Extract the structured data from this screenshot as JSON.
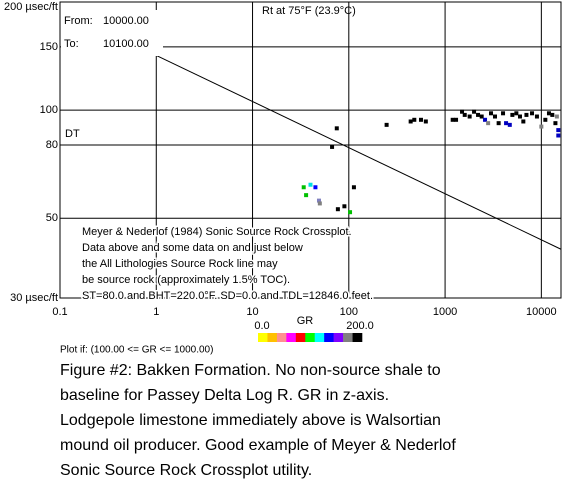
{
  "chart_data": {
    "type": "scatter",
    "title": "Rt at 75°F (23.9°C)",
    "y_label": "DT",
    "x_log": true,
    "y_log": true,
    "grid": true,
    "xlim": [
      0.1,
      16000
    ],
    "ylim": [
      30,
      200
    ],
    "xticks": [
      0.1,
      1,
      10,
      100,
      1000,
      10000
    ],
    "yticks": [
      {
        "value": 30,
        "label": "30 µsec/ft"
      },
      50,
      80,
      100,
      150,
      {
        "value": 200,
        "label": "200 µsec/ft"
      }
    ],
    "x": [
      67,
      75,
      34,
      40,
      45,
      36,
      49,
      50,
      77,
      90,
      103,
      113,
      247,
      439,
      479,
      562,
      631,
      1200,
      1300,
      1500,
      1600,
      1800,
      2000,
      2200,
      2400,
      2600,
      2800,
      3000,
      3300,
      3600,
      4000,
      4300,
      4700,
      5000,
      5500,
      6000,
      6500,
      7000,
      8000,
      9000,
      10000,
      11000,
      12000,
      13000,
      14000,
      14500,
      15000,
      15000
    ],
    "series": [
      {
        "values": [
          79,
          89,
          61,
          62,
          61,
          58,
          56,
          55,
          53,
          54,
          52,
          61,
          91,
          93,
          94,
          94,
          93,
          94,
          94,
          99,
          97,
          96,
          99,
          97,
          96,
          94,
          92,
          98,
          96,
          92,
          98,
          92,
          91,
          97,
          98,
          96,
          93,
          97,
          98,
          96,
          90,
          94,
          98,
          97,
          92,
          96,
          88,
          85
        ],
        "colors": [
          "#000000",
          "#000000",
          "#00c000",
          "#00e0e0",
          "#0000ff",
          "#00c000",
          "#8080c0",
          "#808080",
          "#000000",
          "#000000",
          "#00c000",
          "#000000",
          "#000000",
          "#000000",
          "#000000",
          "#000000",
          "#000000",
          "#000000",
          "#000000",
          "#000000",
          "#000000",
          "#000000",
          "#000000",
          "#000000",
          "#000000",
          "#0000c0",
          "#808080",
          "#000000",
          "#000000",
          "#000000",
          "#000000",
          "#0000c0",
          "#0000c0",
          "#000000",
          "#000000",
          "#000000",
          "#000000",
          "#000000",
          "#000000",
          "#000000",
          "#808080",
          "#000000",
          "#000000",
          "#000000",
          "#000000",
          "#808080",
          "#0000c0",
          "#0000c0"
        ]
      }
    ],
    "reference_line": {
      "x": [
        1,
        16000
      ],
      "values": [
        142,
        41
      ]
    },
    "range": {
      "from_label": "From:",
      "from": "10000.00",
      "to_label": "To:",
      "to": "10100.00"
    },
    "annotation_lines": [
      "Meyer & Nederlof (1984) Sonic Source Rock Crossplot.",
      "Data above and some data on and just below",
      "the All Lithologies Source Rock line may",
      "be source rock (approximately 1.5% TOC).",
      "ST=80.0 and BHT=220.0°F. SD=0.0 and TDL=12846.0 feet."
    ],
    "color_scale": {
      "label": "GR",
      "min": {
        "value": 0,
        "label": "0.0"
      },
      "max": {
        "value": 200,
        "label": "200.0"
      },
      "colors": [
        "#ffff00",
        "#ffc000",
        "#ff9090",
        "#ff00ff",
        "#ff0000",
        "#00ff00",
        "#00ffff",
        "#0000ff",
        "#8000ff",
        "#808080",
        "#000000"
      ]
    },
    "filter": "Plot if: (100.00 <= GR <= 1000.00)",
    "caption": [
      "Figure #2:  Bakken Formation.  No non-source shale to",
      "baseline for Passey Delta Log R.  GR in z-axis.",
      "Lodgepole limestone immediately above is Walsortian",
      "mound oil producer.  Good example of Meyer & Nederlof",
      "Sonic Source Rock Crossplot utility."
    ]
  }
}
